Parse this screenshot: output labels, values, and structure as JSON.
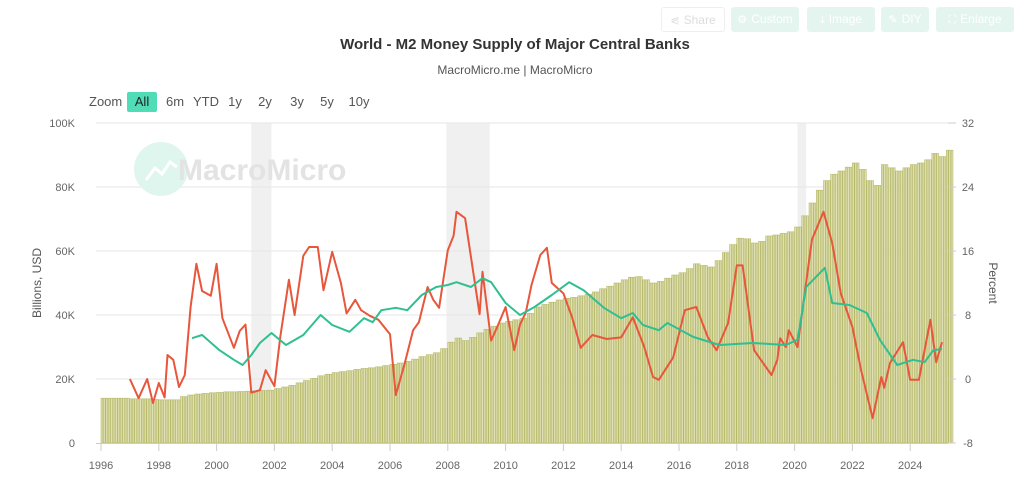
{
  "toolbar": {
    "share": {
      "label": "Share",
      "icon": "share-icon"
    },
    "custom": {
      "label": "Custom",
      "icon": "gear-icon"
    },
    "image": {
      "label": "Image",
      "icon": "download-icon"
    },
    "diy": {
      "label": "DIY",
      "icon": "pencil-icon"
    },
    "enlarge": {
      "label": "Enlarge",
      "icon": "expand-icon"
    }
  },
  "zoom": {
    "label": "Zoom",
    "options": [
      "All",
      "6m",
      "YTD",
      "1y",
      "2y",
      "3y",
      "5y",
      "10y"
    ],
    "selected": "All"
  },
  "watermark": "MacroMicro",
  "colors": {
    "bars_fill": "#dfe0b4",
    "bars_stroke": "#b5b866",
    "red_line": "#e8563b",
    "green_line": "#2fbf91",
    "accent": "#4fdcb6",
    "recession": "#f0f0f0"
  },
  "chart_data": {
    "type": "bar+line",
    "title": "World - M2 Money Supply of Major Central Banks",
    "subtitle": "MacroMicro.me | MacroMicro",
    "ylabel_left": "Billions, USD",
    "ylabel_right": "Percent",
    "ylim_left": [
      0,
      100000
    ],
    "ylim_right": [
      -8,
      32
    ],
    "yticks_left": [
      "0",
      "20K",
      "40K",
      "60K",
      "80K",
      "100K"
    ],
    "yticks_right": [
      "-8",
      "0",
      "8",
      "16",
      "24",
      "32"
    ],
    "xlim": [
      1995.85,
      2025.35
    ],
    "xticks": [
      "1996",
      "1998",
      "2000",
      "2002",
      "2004",
      "2006",
      "2008",
      "2010",
      "2012",
      "2014",
      "2016",
      "2018",
      "2020",
      "2022",
      "2024"
    ],
    "grid": true,
    "recessions": [
      [
        2001.2,
        2001.9
      ],
      [
        2007.95,
        2009.45
      ],
      [
        2020.1,
        2020.4
      ]
    ],
    "bars": {
      "axis": "left",
      "unit": "billions USD",
      "points": [
        [
          "1996Q1",
          14000
        ],
        [
          "1996Q2",
          14000
        ],
        [
          "1996Q3",
          14000
        ],
        [
          "1996Q4",
          14000
        ],
        [
          "1997Q1",
          13800
        ],
        [
          "1997Q2",
          13800
        ],
        [
          "1997Q3",
          13800
        ],
        [
          "1997Q4",
          13600
        ],
        [
          "1998Q1",
          13500
        ],
        [
          "1998Q2",
          13500
        ],
        [
          "1998Q3",
          13500
        ],
        [
          "1998Q4",
          14500
        ],
        [
          "1999Q1",
          15000
        ],
        [
          "1999Q2",
          15300
        ],
        [
          "1999Q3",
          15500
        ],
        [
          "1999Q4",
          15700
        ],
        [
          "2000Q1",
          15800
        ],
        [
          "2000Q2",
          16000
        ],
        [
          "2000Q3",
          16000
        ],
        [
          "2000Q4",
          16100
        ],
        [
          "2001Q1",
          16200
        ],
        [
          "2001Q2",
          16300
        ],
        [
          "2001Q3",
          16400
        ],
        [
          "2001Q4",
          16500
        ],
        [
          "2002Q1",
          17000
        ],
        [
          "2002Q2",
          17500
        ],
        [
          "2002Q3",
          18000
        ],
        [
          "2002Q4",
          18800
        ],
        [
          "2003Q1",
          19500
        ],
        [
          "2003Q2",
          20200
        ],
        [
          "2003Q3",
          21000
        ],
        [
          "2003Q4",
          21500
        ],
        [
          "2004Q1",
          22000
        ],
        [
          "2004Q2",
          22300
        ],
        [
          "2004Q3",
          22600
        ],
        [
          "2004Q4",
          23000
        ],
        [
          "2005Q1",
          23300
        ],
        [
          "2005Q2",
          23500
        ],
        [
          "2005Q3",
          23800
        ],
        [
          "2005Q4",
          24200
        ],
        [
          "2006Q1",
          24600
        ],
        [
          "2006Q2",
          25000
        ],
        [
          "2006Q3",
          25500
        ],
        [
          "2006Q4",
          26200
        ],
        [
          "2007Q1",
          27000
        ],
        [
          "2007Q2",
          27600
        ],
        [
          "2007Q3",
          28200
        ],
        [
          "2007Q4",
          29500
        ],
        [
          "2008Q1",
          31500
        ],
        [
          "2008Q2",
          32800
        ],
        [
          "2008Q3",
          32000
        ],
        [
          "2008Q4",
          33000
        ],
        [
          "2009Q1",
          34400
        ],
        [
          "2009Q2",
          35500
        ],
        [
          "2009Q3",
          36500
        ],
        [
          "2009Q4",
          37500
        ],
        [
          "2010Q1",
          38000
        ],
        [
          "2010Q2",
          38500
        ],
        [
          "2010Q3",
          39000
        ],
        [
          "2010Q4",
          40500
        ],
        [
          "2011Q1",
          42500
        ],
        [
          "2011Q2",
          43300
        ],
        [
          "2011Q3",
          44000
        ],
        [
          "2011Q4",
          44700
        ],
        [
          "2012Q1",
          45200
        ],
        [
          "2012Q2",
          45500
        ],
        [
          "2012Q3",
          46000
        ],
        [
          "2012Q4",
          46500
        ],
        [
          "2013Q1",
          47200
        ],
        [
          "2013Q2",
          48200
        ],
        [
          "2013Q3",
          49000
        ],
        [
          "2013Q4",
          50000
        ],
        [
          "2014Q1",
          51000
        ],
        [
          "2014Q2",
          51800
        ],
        [
          "2014Q3",
          52000
        ],
        [
          "2014Q4",
          51000
        ],
        [
          "2015Q1",
          50000
        ],
        [
          "2015Q2",
          50500
        ],
        [
          "2015Q3",
          51500
        ],
        [
          "2015Q4",
          52500
        ],
        [
          "2016Q1",
          53200
        ],
        [
          "2016Q2",
          54500
        ],
        [
          "2016Q3",
          56000
        ],
        [
          "2016Q4",
          55500
        ],
        [
          "2017Q1",
          55000
        ],
        [
          "2017Q2",
          57000
        ],
        [
          "2017Q3",
          59500
        ],
        [
          "2017Q4",
          62000
        ],
        [
          "2018Q1",
          64000
        ],
        [
          "2018Q2",
          63800
        ],
        [
          "2018Q3",
          62500
        ],
        [
          "2018Q4",
          63000
        ],
        [
          "2019Q1",
          64700
        ],
        [
          "2019Q2",
          65000
        ],
        [
          "2019Q3",
          65500
        ],
        [
          "2019Q4",
          66000
        ],
        [
          "2020Q1",
          67500
        ],
        [
          "2020Q2",
          71000
        ],
        [
          "2020Q3",
          75000
        ],
        [
          "2020Q4",
          79000
        ],
        [
          "2021Q1",
          82000
        ],
        [
          "2021Q2",
          84000
        ],
        [
          "2021Q3",
          85000
        ],
        [
          "2021Q4",
          86200
        ],
        [
          "2022Q1",
          87500
        ],
        [
          "2022Q2",
          85500
        ],
        [
          "2022Q3",
          82000
        ],
        [
          "2022Q4",
          80500
        ],
        [
          "2023Q1",
          87000
        ],
        [
          "2023Q2",
          86000
        ],
        [
          "2023Q3",
          85000
        ],
        [
          "2023Q4",
          86000
        ],
        [
          "2024Q1",
          87000
        ],
        [
          "2024Q2",
          87500
        ],
        [
          "2024Q3",
          88500
        ],
        [
          "2024Q4",
          90500
        ],
        [
          "2025Q1",
          89500
        ],
        [
          "2025Q2",
          91500
        ]
      ]
    },
    "series": [
      {
        "axis": "right",
        "color": "#e8563b",
        "points": [
          [
            1997.0,
            0
          ],
          [
            1997.3,
            -2.4
          ],
          [
            1997.6,
            0
          ],
          [
            1997.8,
            -3
          ],
          [
            1998.0,
            -0.5
          ],
          [
            1998.2,
            -2.3
          ],
          [
            1998.3,
            3
          ],
          [
            1998.5,
            2.4
          ],
          [
            1998.7,
            -1
          ],
          [
            1998.9,
            0.5
          ],
          [
            1999.1,
            9
          ],
          [
            1999.3,
            14.4
          ],
          [
            1999.5,
            11
          ],
          [
            1999.8,
            10.4
          ],
          [
            2000.0,
            14.4
          ],
          [
            2000.2,
            7.6
          ],
          [
            2000.6,
            3.9
          ],
          [
            2000.8,
            6
          ],
          [
            2001.0,
            6.8
          ],
          [
            2001.2,
            -1.7
          ],
          [
            2001.5,
            -1.4
          ],
          [
            2001.7,
            1.1
          ],
          [
            2002.0,
            -0.9
          ],
          [
            2002.2,
            5.2
          ],
          [
            2002.5,
            12.4
          ],
          [
            2002.7,
            8
          ],
          [
            2003.0,
            15.4
          ],
          [
            2003.2,
            16.5
          ],
          [
            2003.5,
            16.5
          ],
          [
            2003.7,
            11.1
          ],
          [
            2004.0,
            15.9
          ],
          [
            2004.3,
            12
          ],
          [
            2004.5,
            8.2
          ],
          [
            2004.8,
            9.9
          ],
          [
            2005.0,
            8.6
          ],
          [
            2005.3,
            7.9
          ],
          [
            2005.6,
            7.4
          ],
          [
            2006.0,
            5.6
          ],
          [
            2006.2,
            -2
          ],
          [
            2006.5,
            1.8
          ],
          [
            2006.8,
            6.1
          ],
          [
            2007.0,
            7.1
          ],
          [
            2007.3,
            11.5
          ],
          [
            2007.5,
            9.9
          ],
          [
            2007.7,
            8.9
          ],
          [
            2008.0,
            16.1
          ],
          [
            2008.2,
            17.9
          ],
          [
            2008.3,
            20.9
          ],
          [
            2008.6,
            20.1
          ],
          [
            2008.9,
            12.9
          ],
          [
            2009.1,
            8.1
          ],
          [
            2009.2,
            13.4
          ],
          [
            2009.5,
            4.8
          ],
          [
            2009.7,
            6.4
          ],
          [
            2010.0,
            9
          ],
          [
            2010.3,
            3.6
          ],
          [
            2010.5,
            6.8
          ],
          [
            2010.7,
            8.3
          ],
          [
            2010.9,
            11.8
          ],
          [
            2011.2,
            15.5
          ],
          [
            2011.43,
            16.4
          ],
          [
            2011.6,
            12
          ],
          [
            2012.0,
            10.7
          ],
          [
            2012.3,
            7.7
          ],
          [
            2012.6,
            3.9
          ],
          [
            2013.0,
            5.5
          ],
          [
            2013.5,
            5
          ],
          [
            2014.0,
            5.2
          ],
          [
            2014.4,
            7.7
          ],
          [
            2014.8,
            4
          ],
          [
            2015.1,
            0.25
          ],
          [
            2015.3,
            -0.1
          ],
          [
            2015.8,
            2.7
          ],
          [
            2016.2,
            8.6
          ],
          [
            2016.6,
            9
          ],
          [
            2017.0,
            5.2
          ],
          [
            2017.3,
            3.6
          ],
          [
            2017.7,
            7
          ],
          [
            2018.0,
            14.2
          ],
          [
            2018.2,
            14.2
          ],
          [
            2018.6,
            3.6
          ],
          [
            2019.2,
            0.5
          ],
          [
            2019.4,
            2.4
          ],
          [
            2019.5,
            5.1
          ],
          [
            2019.7,
            4
          ],
          [
            2019.8,
            6.1
          ],
          [
            2020.1,
            4
          ],
          [
            2020.6,
            17.4
          ],
          [
            2021.0,
            20.9
          ],
          [
            2021.3,
            17
          ],
          [
            2021.6,
            10.7
          ],
          [
            2022.0,
            6.5
          ],
          [
            2022.3,
            1.1
          ],
          [
            2022.7,
            -4.9
          ],
          [
            2023.0,
            0.25
          ],
          [
            2023.1,
            -1.1
          ],
          [
            2023.3,
            2
          ],
          [
            2023.75,
            4.6
          ],
          [
            2024.0,
            -0.1
          ],
          [
            2024.3,
            -0.1
          ],
          [
            2024.7,
            7.4
          ],
          [
            2024.9,
            2.1
          ],
          [
            2025.1,
            4.6
          ]
        ]
      },
      {
        "axis": "right",
        "color": "#2fbf91",
        "points": [
          [
            1999.15,
            5.1
          ],
          [
            1999.5,
            5.5
          ],
          [
            2000.1,
            3.6
          ],
          [
            2000.6,
            2.4
          ],
          [
            2000.9,
            1.75
          ],
          [
            2001.2,
            3
          ],
          [
            2001.5,
            4.5
          ],
          [
            2001.9,
            5.75
          ],
          [
            2002.4,
            4.25
          ],
          [
            2003.0,
            5.5
          ],
          [
            2003.6,
            8
          ],
          [
            2004.0,
            6.75
          ],
          [
            2004.6,
            5.9
          ],
          [
            2005.1,
            7.6
          ],
          [
            2005.4,
            7.1
          ],
          [
            2005.7,
            8.6
          ],
          [
            2006.2,
            8.9
          ],
          [
            2006.6,
            8.6
          ],
          [
            2007.1,
            10.5
          ],
          [
            2007.6,
            11.5
          ],
          [
            2008.0,
            11.75
          ],
          [
            2008.3,
            12.1
          ],
          [
            2008.8,
            11.5
          ],
          [
            2009.2,
            12.6
          ],
          [
            2009.5,
            12.1
          ],
          [
            2010.0,
            9.5
          ],
          [
            2010.5,
            8
          ],
          [
            2011.0,
            9
          ],
          [
            2011.6,
            10.5
          ],
          [
            2012.2,
            12.1
          ],
          [
            2012.7,
            11.1
          ],
          [
            2013.4,
            8.9
          ],
          [
            2014.0,
            7.6
          ],
          [
            2014.4,
            8.25
          ],
          [
            2014.75,
            6.75
          ],
          [
            2015.3,
            6.1
          ],
          [
            2015.6,
            7
          ],
          [
            2016.5,
            5.25
          ],
          [
            2017.4,
            4.25
          ],
          [
            2018.55,
            4.5
          ],
          [
            2019.7,
            4.25
          ],
          [
            2020.1,
            4.9
          ],
          [
            2020.4,
            11.5
          ],
          [
            2021.05,
            13.9
          ],
          [
            2021.3,
            9.5
          ],
          [
            2021.9,
            9.25
          ],
          [
            2022.5,
            8.25
          ],
          [
            2022.95,
            4.9
          ],
          [
            2023.55,
            1.75
          ],
          [
            2024.1,
            2.4
          ],
          [
            2024.5,
            2.1
          ],
          [
            2024.8,
            3.6
          ],
          [
            2025.1,
            3.75
          ]
        ]
      }
    ]
  }
}
